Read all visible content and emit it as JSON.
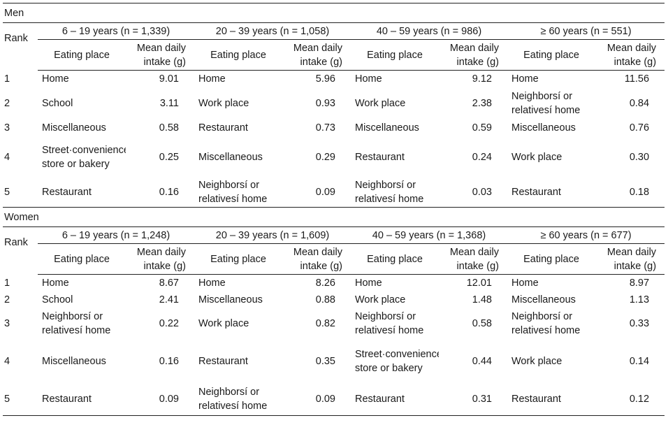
{
  "header_labels": {
    "rank": "Rank",
    "eating_place": "Eating place",
    "mean_daily_intake": "Mean daily intake (g)"
  },
  "sections": [
    {
      "label": "Men",
      "groups": [
        "6 – 19 years (n = 1,339)",
        "20 – 39 years (n = 1,058)",
        "40 – 59 years (n = 986)",
        "≥ 60 years (n = 551)"
      ],
      "rows": [
        {
          "rank": "1",
          "cells": [
            {
              "place": "Home",
              "value": "9.01"
            },
            {
              "place": "Home",
              "value": "5.96"
            },
            {
              "place": "Home",
              "value": "9.12"
            },
            {
              "place": "Home",
              "value": "11.56"
            }
          ]
        },
        {
          "rank": "2",
          "cells": [
            {
              "place": "School",
              "value": "3.11"
            },
            {
              "place": "Work place",
              "value": "0.93"
            },
            {
              "place": "Work place",
              "value": "2.38"
            },
            {
              "place": "Neighborsí or relativesí home",
              "value": "0.84"
            }
          ]
        },
        {
          "rank": "3",
          "cells": [
            {
              "place": "Miscellaneous",
              "value": "0.58"
            },
            {
              "place": "Restaurant",
              "value": "0.73"
            },
            {
              "place": "Miscellaneous",
              "value": "0.59"
            },
            {
              "place": "Miscellaneous",
              "value": "0.76"
            }
          ]
        },
        {
          "rank": "4",
          "cells": [
            {
              "place": "Street·convenience store or bakery",
              "value": "0.25"
            },
            {
              "place": "Miscellaneous",
              "value": "0.29"
            },
            {
              "place": "Restaurant",
              "value": "0.24"
            },
            {
              "place": "Work place",
              "value": "0.30"
            }
          ]
        },
        {
          "rank": "5",
          "cells": [
            {
              "place": "Restaurant",
              "value": "0.16"
            },
            {
              "place": "Neighborsí or relativesí home",
              "value": "0.09"
            },
            {
              "place": "Neighborsí or relativesí home",
              "value": "0.03"
            },
            {
              "place": "Restaurant",
              "value": "0.18"
            }
          ]
        }
      ]
    },
    {
      "label": "Women",
      "groups": [
        "6 – 19 years (n = 1,248)",
        "20 – 39 years (n = 1,609)",
        "40 – 59 years (n = 1,368)",
        "≥ 60 years (n = 677)"
      ],
      "rows": [
        {
          "rank": "1",
          "cells": [
            {
              "place": "Home",
              "value": "8.67"
            },
            {
              "place": "Home",
              "value": "8.26"
            },
            {
              "place": "Home",
              "value": "12.01"
            },
            {
              "place": "Home",
              "value": "8.97"
            }
          ]
        },
        {
          "rank": "2",
          "cells": [
            {
              "place": "School",
              "value": "2.41"
            },
            {
              "place": "Miscellaneous",
              "value": "0.88"
            },
            {
              "place": "Work place",
              "value": "1.48"
            },
            {
              "place": "Miscellaneous",
              "value": "1.13"
            }
          ]
        },
        {
          "rank": "3",
          "cells": [
            {
              "place": "Neighborsí or relativesí home",
              "value": "0.22"
            },
            {
              "place": "Work place",
              "value": "0.82"
            },
            {
              "place": "Neighborsí or relativesí home",
              "value": "0.58"
            },
            {
              "place": "Neighborsí or relativesí home",
              "value": "0.33"
            }
          ]
        },
        {
          "rank": "4",
          "cells": [
            {
              "place": "Miscellaneous",
              "value": "0.16"
            },
            {
              "place": "Restaurant",
              "value": "0.35"
            },
            {
              "place": "Street·convenience store or bakery",
              "value": "0.44"
            },
            {
              "place": "Work place",
              "value": "0.14"
            }
          ]
        },
        {
          "rank": "5",
          "cells": [
            {
              "place": "Restaurant",
              "value": "0.09"
            },
            {
              "place": "Neighborsí or relativesí home",
              "value": "0.09"
            },
            {
              "place": "Restaurant",
              "value": "0.31"
            },
            {
              "place": "Restaurant",
              "value": "0.12"
            }
          ]
        }
      ]
    }
  ]
}
